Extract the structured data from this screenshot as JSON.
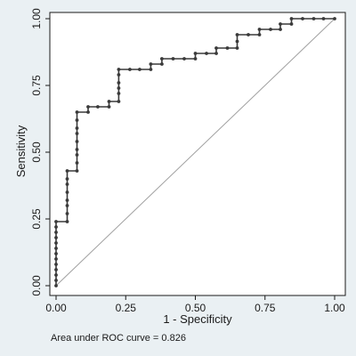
{
  "chart_data": {
    "type": "line",
    "xlabel": "1 - Specificity",
    "ylabel": "Sensitivity",
    "xlim": [
      0,
      1
    ],
    "ylim": [
      0,
      1
    ],
    "x_ticks": [
      "0.00",
      "0.25",
      "0.50",
      "0.75",
      "1.00"
    ],
    "y_ticks": [
      "0.00",
      "0.25",
      "0.50",
      "0.75",
      "1.00"
    ],
    "grid": false,
    "legend": "none",
    "note": "Area under ROC curve = 0.826",
    "reference_line": {
      "x": [
        0,
        1
      ],
      "y": [
        0,
        1
      ],
      "color": "#a0a0a0"
    },
    "series": [
      {
        "color": "#3a3a3a",
        "points": [
          [
            0.0,
            0.0
          ],
          [
            0.0,
            0.02
          ],
          [
            0.0,
            0.04
          ],
          [
            0.0,
            0.06
          ],
          [
            0.0,
            0.08
          ],
          [
            0.0,
            0.1
          ],
          [
            0.0,
            0.12
          ],
          [
            0.0,
            0.14
          ],
          [
            0.0,
            0.16
          ],
          [
            0.0,
            0.18
          ],
          [
            0.0,
            0.2
          ],
          [
            0.0,
            0.22
          ],
          [
            0.0,
            0.24
          ],
          [
            0.04,
            0.24
          ],
          [
            0.04,
            0.27
          ],
          [
            0.04,
            0.3
          ],
          [
            0.04,
            0.32
          ],
          [
            0.04,
            0.35
          ],
          [
            0.04,
            0.38
          ],
          [
            0.04,
            0.4
          ],
          [
            0.04,
            0.43
          ],
          [
            0.075,
            0.43
          ],
          [
            0.075,
            0.46
          ],
          [
            0.075,
            0.49
          ],
          [
            0.075,
            0.51
          ],
          [
            0.075,
            0.54
          ],
          [
            0.075,
            0.57
          ],
          [
            0.075,
            0.59
          ],
          [
            0.075,
            0.62
          ],
          [
            0.075,
            0.65
          ],
          [
            0.115,
            0.65
          ],
          [
            0.115,
            0.67
          ],
          [
            0.15,
            0.67
          ],
          [
            0.19,
            0.67
          ],
          [
            0.19,
            0.69
          ],
          [
            0.225,
            0.69
          ],
          [
            0.225,
            0.72
          ],
          [
            0.225,
            0.74
          ],
          [
            0.225,
            0.76
          ],
          [
            0.225,
            0.79
          ],
          [
            0.225,
            0.81
          ],
          [
            0.265,
            0.81
          ],
          [
            0.3,
            0.81
          ],
          [
            0.34,
            0.81
          ],
          [
            0.34,
            0.83
          ],
          [
            0.38,
            0.83
          ],
          [
            0.38,
            0.85
          ],
          [
            0.42,
            0.85
          ],
          [
            0.46,
            0.85
          ],
          [
            0.5,
            0.85
          ],
          [
            0.5,
            0.87
          ],
          [
            0.54,
            0.87
          ],
          [
            0.575,
            0.87
          ],
          [
            0.575,
            0.89
          ],
          [
            0.615,
            0.89
          ],
          [
            0.65,
            0.89
          ],
          [
            0.65,
            0.915
          ],
          [
            0.65,
            0.94
          ],
          [
            0.69,
            0.94
          ],
          [
            0.73,
            0.94
          ],
          [
            0.73,
            0.96
          ],
          [
            0.77,
            0.96
          ],
          [
            0.805,
            0.96
          ],
          [
            0.805,
            0.98
          ],
          [
            0.845,
            0.98
          ],
          [
            0.845,
            1.0
          ],
          [
            0.885,
            1.0
          ],
          [
            0.925,
            1.0
          ],
          [
            0.96,
            1.0
          ],
          [
            1.0,
            1.0
          ]
        ]
      }
    ]
  }
}
